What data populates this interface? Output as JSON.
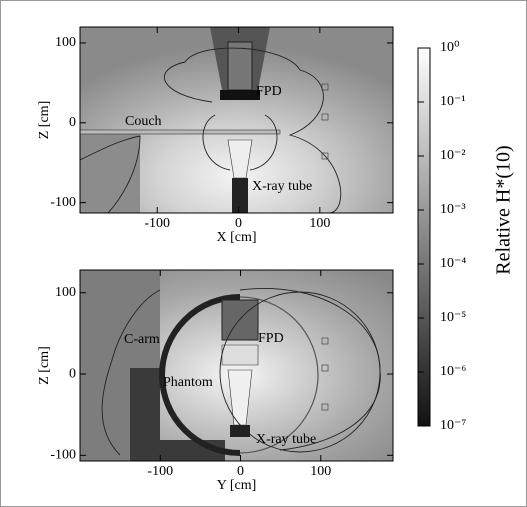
{
  "chart_data": [
    {
      "type": "heatmap",
      "xlabel": "X [cm]",
      "ylabel": "Z [cm]",
      "xlim": [
        -195,
        190
      ],
      "ylim": [
        -113,
        120
      ],
      "xticks": [
        -100,
        0,
        100
      ],
      "yticks": [
        -100,
        0,
        100
      ],
      "annotations": [
        "FPD",
        "Couch",
        "X-ray tube"
      ]
    },
    {
      "type": "heatmap",
      "xlabel": "Y [cm]",
      "ylabel": "Z [cm]",
      "xlim": [
        -200,
        190
      ],
      "ylim": [
        -107,
        128
      ],
      "xticks": [
        -100,
        0,
        100
      ],
      "yticks": [
        -100,
        0,
        100
      ],
      "annotations": [
        "C-arm",
        "FPD",
        "Phantom",
        "X-ray tube"
      ]
    },
    {
      "type": "colorbar",
      "label": "Relative H*(10)",
      "log_scale": true,
      "lim": [
        1e-07,
        1
      ],
      "ticks": [
        {
          "value": 1,
          "label": "10⁰"
        },
        {
          "value": 0.1,
          "label": "10⁻¹"
        },
        {
          "value": 0.01,
          "label": "10⁻²"
        },
        {
          "value": 0.001,
          "label": "10⁻³"
        },
        {
          "value": 0.0001,
          "label": "10⁻⁴"
        },
        {
          "value": 1e-05,
          "label": "10⁻⁵"
        },
        {
          "value": 1e-06,
          "label": "10⁻⁶"
        },
        {
          "value": 1e-07,
          "label": "10⁻⁷"
        }
      ]
    }
  ]
}
